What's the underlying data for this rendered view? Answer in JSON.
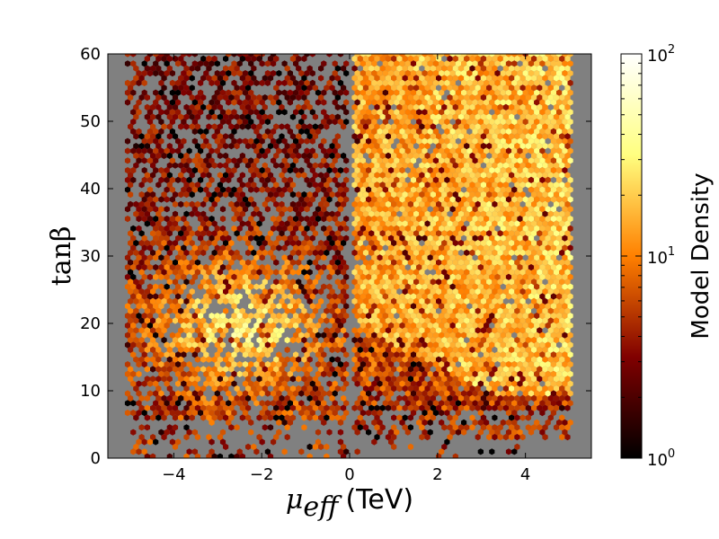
{
  "chart_data": {
    "type": "heatmap",
    "subtype": "hexbin",
    "title": "",
    "xlabel": "μ",
    "xlabel_sub": "eff",
    "xlabel_unit": "(TeV)",
    "ylabel": "tanβ",
    "xlim": [
      -5.5,
      5.5
    ],
    "ylim": [
      0,
      60
    ],
    "xticks": [
      -4,
      -2,
      0,
      2,
      4
    ],
    "xtick_labels": [
      "−4",
      "−2",
      "0",
      "2",
      "4"
    ],
    "yticks": [
      0,
      10,
      20,
      30,
      40,
      50,
      60
    ],
    "ytick_labels": [
      "0",
      "10",
      "20",
      "30",
      "40",
      "50",
      "60"
    ],
    "background_color": "#808080",
    "colormap": "afmhot",
    "colorbar": {
      "label": "Model Density",
      "scale": "log",
      "range": [
        1,
        100
      ],
      "ticks": [
        1,
        10,
        100
      ],
      "tick_base": "10",
      "tick_exponents": [
        "0",
        "1",
        "2"
      ]
    },
    "grid": false,
    "legend": "none",
    "regions": [
      {
        "name": "mu-negative",
        "x": [
          -5.0,
          -0.05
        ],
        "y": [
          2,
          60
        ],
        "typical_density": 3
      },
      {
        "name": "mu-positive",
        "x": [
          0.1,
          5.0
        ],
        "y": [
          1,
          60
        ],
        "typical_density": 10
      }
    ]
  }
}
